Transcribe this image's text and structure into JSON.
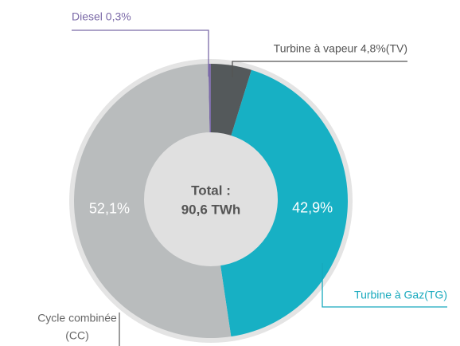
{
  "chart_data": {
    "type": "donut",
    "categories": [
      [
        "Diesel 0,3%"
      ],
      [
        "Turbine à vapeur 4,8%(TV)"
      ],
      [
        "Turbine à Gaz(TG)"
      ],
      [
        "Cycle combinée",
        "(CC)"
      ]
    ],
    "values": [
      0.3,
      4.8,
      42.9,
      52.1
    ],
    "value_labels": [
      null,
      null,
      "42,9%",
      "52,1%"
    ],
    "colors": [
      "#7b6aa8",
      "#54595b",
      "#17b0c4",
      "#b9bcbd"
    ],
    "label_colors": [
      "#7b6aa8",
      "#555555",
      "#17a9bd",
      "#666666"
    ],
    "center_text": [
      "Total :",
      "90,6 TWh"
    ]
  }
}
